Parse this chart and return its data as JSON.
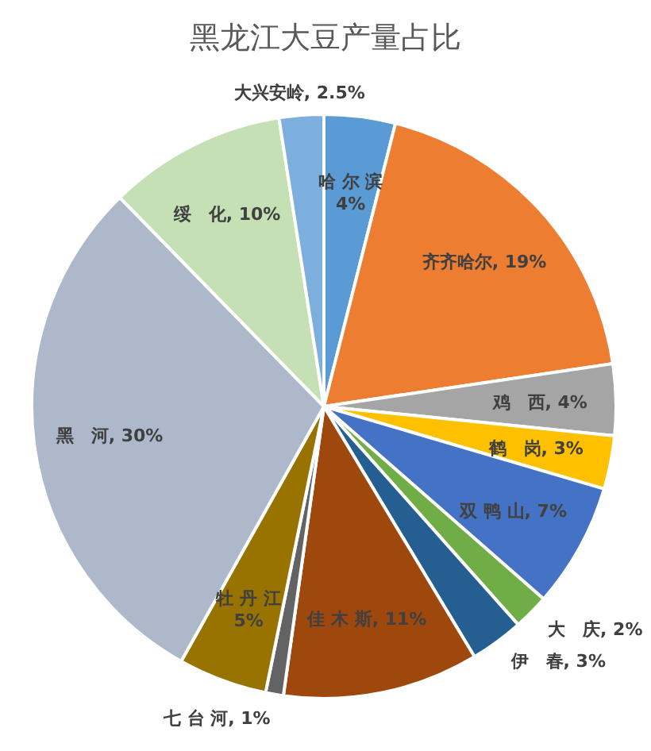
{
  "chart_data": {
    "type": "pie",
    "title": "黑龙江大豆产量占比",
    "categories": [
      "哈 尔 滨",
      "齐齐哈尔",
      "鸡　西",
      "鹤　岗",
      "双 鸭 山",
      "大　庆",
      "伊　春",
      "佳 木 斯",
      "七 台 河",
      "牡 丹 江",
      "黑　河",
      "绥　化",
      "大兴安岭"
    ],
    "values": [
      4,
      19,
      4,
      3,
      7,
      2,
      3,
      11,
      1,
      5,
      30,
      10,
      2.5
    ],
    "value_labels": [
      "4%",
      "19%",
      "4%",
      "3%",
      "7%",
      "2%",
      "3%",
      "11%",
      "1%",
      "5%",
      "30%",
      "10%",
      "2.5%"
    ],
    "colors": [
      "#5b9bd5",
      "#ed7d31",
      "#a5a5a5",
      "#ffc000",
      "#4472c4",
      "#70ad47",
      "#255e91",
      "#9e480e",
      "#636363",
      "#997300",
      "#adb9ca",
      "#c5e0b4",
      "#7cafdd"
    ],
    "legend": false
  }
}
